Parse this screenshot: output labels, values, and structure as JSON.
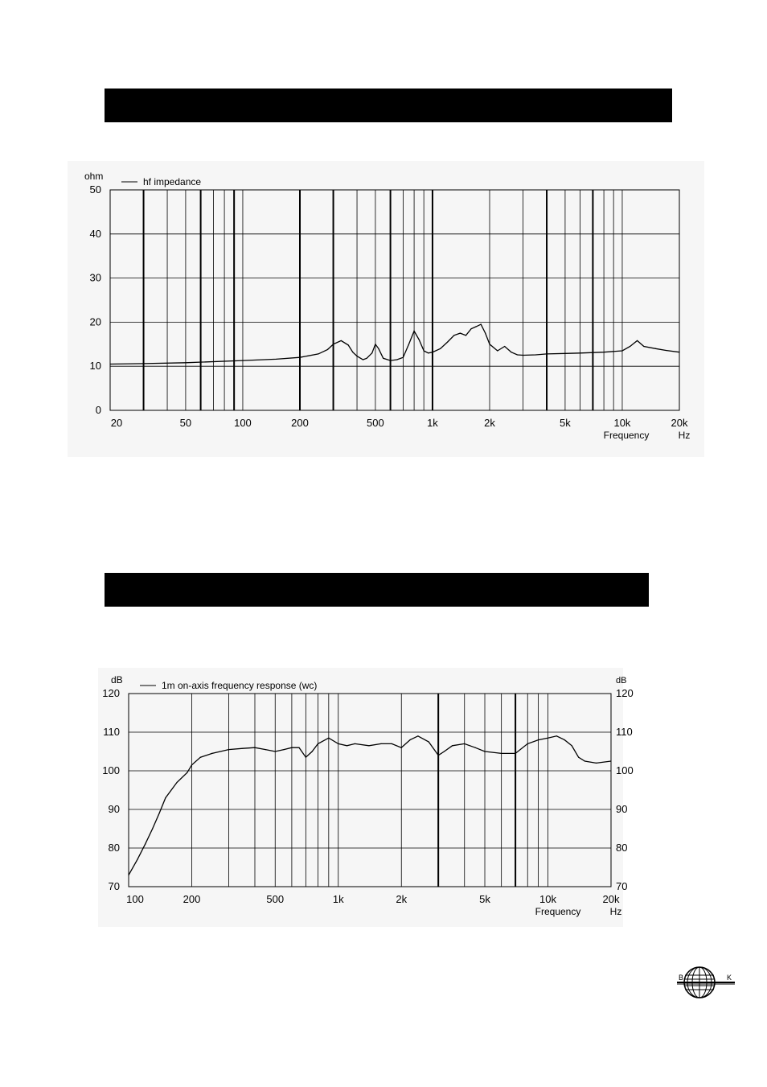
{
  "section_bars": [
    "",
    ""
  ],
  "logo": {
    "letters": [
      "B",
      "K"
    ]
  },
  "chart_data": [
    {
      "type": "line",
      "title": "",
      "yunit": "ohm",
      "xlabel": "Frequency",
      "xunit": "Hz",
      "xscale": "log",
      "xlim": [
        20,
        20000
      ],
      "ylim": [
        0,
        50
      ],
      "grid": true,
      "legend_position": "top-left",
      "yticks": [
        {
          "v": 50,
          "label": "50"
        },
        {
          "v": 40,
          "label": "40"
        },
        {
          "v": 30,
          "label": "30"
        },
        {
          "v": 20,
          "label": "20"
        },
        {
          "v": 10,
          "label": "10"
        },
        {
          "v": 0,
          "label": "0"
        }
      ],
      "xticks": [
        {
          "v": 20,
          "label": "20"
        },
        {
          "v": 50,
          "label": "50"
        },
        {
          "v": 100,
          "label": "100"
        },
        {
          "v": 200,
          "label": "200"
        },
        {
          "v": 500,
          "label": "500"
        },
        {
          "v": 1000,
          "label": "1k"
        },
        {
          "v": 2000,
          "label": "2k"
        },
        {
          "v": 5000,
          "label": "5k"
        },
        {
          "v": 10000,
          "label": "10k"
        },
        {
          "v": 20000,
          "label": "20k"
        }
      ],
      "series": [
        {
          "name": "hf impedance",
          "x": [
            20,
            30,
            50,
            100,
            150,
            200,
            250,
            280,
            300,
            330,
            360,
            380,
            400,
            430,
            450,
            480,
            500,
            520,
            550,
            600,
            650,
            700,
            750,
            800,
            850,
            900,
            950,
            1000,
            1100,
            1200,
            1300,
            1400,
            1500,
            1600,
            1700,
            1800,
            1900,
            2000,
            2200,
            2400,
            2600,
            2800,
            3000,
            3500,
            4000,
            5000,
            6000,
            8000,
            10000,
            11000,
            12000,
            13000,
            15000,
            17000,
            20000
          ],
          "y": [
            10.5,
            10.6,
            10.8,
            11.3,
            11.6,
            12,
            12.8,
            13.8,
            15,
            15.8,
            14.8,
            13.2,
            12.3,
            11.5,
            11.8,
            13,
            15,
            14,
            11.8,
            11.3,
            11.5,
            12,
            15,
            18,
            16,
            13.5,
            13,
            13.2,
            14,
            15.5,
            17,
            17.5,
            17,
            18.5,
            19,
            19.5,
            17.5,
            15,
            13.5,
            14.5,
            13.2,
            12.6,
            12.5,
            12.6,
            12.8,
            12.9,
            13,
            13.2,
            13.5,
            14.5,
            15.8,
            14.5,
            14,
            13.6,
            13.2
          ]
        }
      ]
    },
    {
      "type": "line",
      "title": "",
      "yunit": "dB",
      "xlabel": "Frequency",
      "xunit": "Hz",
      "xscale": "log",
      "xlim": [
        100,
        20000
      ],
      "ylim": [
        70,
        120
      ],
      "grid": true,
      "right_axis": true,
      "legend_position": "top-left",
      "yticks": [
        {
          "v": 120,
          "label": "120"
        },
        {
          "v": 110,
          "label": "110"
        },
        {
          "v": 100,
          "label": "100"
        },
        {
          "v": 90,
          "label": "90"
        },
        {
          "v": 80,
          "label": "80"
        },
        {
          "v": 70,
          "label": "70"
        }
      ],
      "xticks": [
        {
          "v": 100,
          "label": "100"
        },
        {
          "v": 200,
          "label": "200"
        },
        {
          "v": 500,
          "label": "500"
        },
        {
          "v": 1000,
          "label": "1k"
        },
        {
          "v": 2000,
          "label": "2k"
        },
        {
          "v": 5000,
          "label": "5k"
        },
        {
          "v": 10000,
          "label": "10k"
        },
        {
          "v": 20000,
          "label": "20k"
        }
      ],
      "series": [
        {
          "name": "1m on-axis frequency response (wc)",
          "x": [
            100,
            110,
            120,
            130,
            140,
            150,
            170,
            190,
            200,
            220,
            250,
            300,
            350,
            400,
            450,
            500,
            550,
            600,
            650,
            700,
            750,
            800,
            900,
            1000,
            1100,
            1200,
            1400,
            1600,
            1800,
            2000,
            2200,
            2400,
            2700,
            3000,
            3200,
            3500,
            4000,
            4500,
            5000,
            6000,
            7000,
            8000,
            9000,
            10000,
            11000,
            12000,
            13000,
            14000,
            15000,
            17000,
            20000
          ],
          "y": [
            73,
            77,
            81,
            85,
            89,
            93,
            97,
            99.5,
            101.5,
            103.5,
            104.5,
            105.5,
            105.8,
            106,
            105.5,
            105,
            105.5,
            106,
            106,
            103.5,
            105,
            107,
            108.5,
            107,
            106.5,
            107,
            106.5,
            107,
            107,
            106,
            108,
            109,
            107.5,
            104,
            105,
            106.5,
            107,
            106,
            105,
            104.5,
            104.5,
            107,
            108,
            108.5,
            109,
            108,
            106.5,
            103.5,
            102.5,
            102,
            102.5
          ]
        }
      ]
    }
  ]
}
